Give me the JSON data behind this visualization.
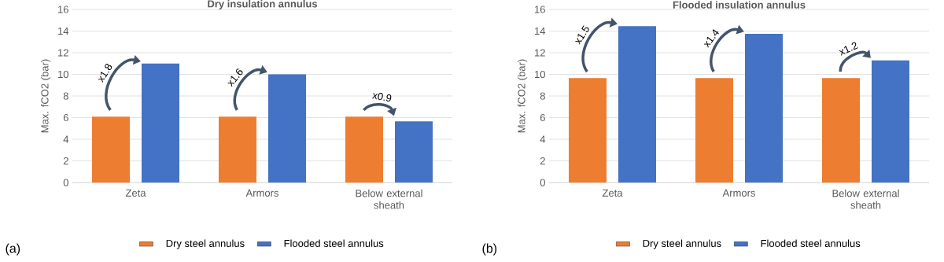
{
  "chart_data": [
    {
      "type": "bar",
      "title": "Dry insulation annulus",
      "ylabel": "Max. fCO2 (bar)",
      "categories": [
        "Zeta",
        "Armors",
        "Below external sheath"
      ],
      "series": [
        {
          "name": "Dry steel annulus",
          "color": "#ed7d31",
          "values": [
            6.1,
            6.1,
            6.1
          ]
        },
        {
          "name": "Flooded steel annulus",
          "color": "#4472c4",
          "values": [
            11.0,
            10.0,
            5.65
          ]
        }
      ],
      "ylim": [
        0,
        16
      ],
      "yticks": [
        0,
        2,
        4,
        6,
        8,
        10,
        12,
        14,
        16
      ],
      "grid": "y",
      "legend": "bottom",
      "annotations": [
        "x1.8",
        "x1.6",
        "x0.9",
        "(a)"
      ]
    },
    {
      "type": "bar",
      "title": "Flooded insulation annulus",
      "ylabel": "Max. fCO2 (bar)",
      "categories": [
        "Zeta",
        "Armors",
        "Below external sheath"
      ],
      "series": [
        {
          "name": "Dry steel annulus",
          "color": "#ed7d31",
          "values": [
            9.65,
            9.65,
            9.65
          ]
        },
        {
          "name": "Flooded steel annulus",
          "color": "#4472c4",
          "values": [
            14.45,
            13.75,
            11.3
          ]
        }
      ],
      "ylim": [
        0,
        16
      ],
      "yticks": [
        0,
        2,
        4,
        6,
        8,
        10,
        12,
        14,
        16
      ],
      "grid": "y",
      "legend": "bottom",
      "annotations": [
        "x1.5",
        "x1.4",
        "x1.2",
        "(b)"
      ]
    }
  ]
}
